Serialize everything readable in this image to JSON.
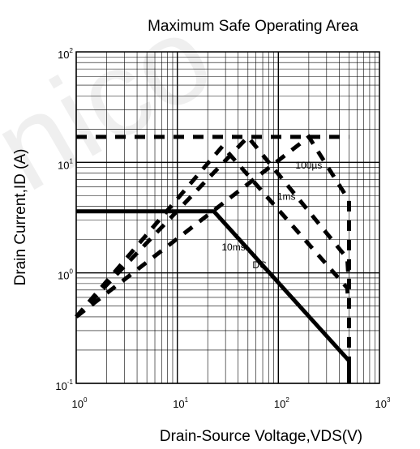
{
  "chart_data": {
    "type": "line",
    "title": "Maximum Safe Operating Area",
    "xlabel": "Drain-Source Voltage,VDS(V)",
    "ylabel": "Drain Current,ID (A)",
    "x_scale": "log",
    "y_scale": "log",
    "xlim": [
      1,
      1000
    ],
    "ylim": [
      0.1,
      100
    ],
    "grid": true,
    "x_ticks": [
      {
        "base": "10",
        "exp": "0"
      },
      {
        "base": "10",
        "exp": "1"
      },
      {
        "base": "10",
        "exp": "2"
      },
      {
        "base": "10",
        "exp": "3"
      }
    ],
    "y_ticks": [
      {
        "base": "10",
        "exp": "2"
      },
      {
        "base": "10",
        "exp": "1"
      },
      {
        "base": "10",
        "exp": "0"
      },
      {
        "base": "10",
        "exp": "-1"
      }
    ],
    "series": [
      {
        "name": "DC",
        "style": "solid",
        "x": [
          1,
          23,
          500,
          500
        ],
        "y": [
          3.6,
          3.6,
          0.16,
          0.1
        ]
      },
      {
        "name": "10ms",
        "style": "dashed",
        "x": [
          1,
          28,
          480,
          490
        ],
        "y": [
          0.4,
          14,
          0.73,
          0.55
        ]
      },
      {
        "name": "1ms",
        "style": "dashed",
        "x": [
          1,
          50,
          480,
          490
        ],
        "y": [
          0.4,
          17,
          1.35,
          1.0
        ]
      },
      {
        "name": "100µs",
        "style": "dashed",
        "x": [
          1,
          200,
          500,
          500
        ],
        "y": [
          0.4,
          17,
          4.5,
          0.1
        ]
      },
      {
        "name": "",
        "style": "dashed",
        "x": [
          1,
          500
        ],
        "y": [
          17,
          17
        ]
      }
    ],
    "annotations": [
      {
        "text": "100µs",
        "x": 200,
        "y": 8.8
      },
      {
        "text": "1ms",
        "x": 120,
        "y": 4.6
      },
      {
        "text": "10ms",
        "x": 36,
        "y": 1.6
      },
      {
        "text": "DC",
        "x": 65,
        "y": 1.1
      }
    ]
  },
  "watermark": {
    "text": "nico"
  }
}
